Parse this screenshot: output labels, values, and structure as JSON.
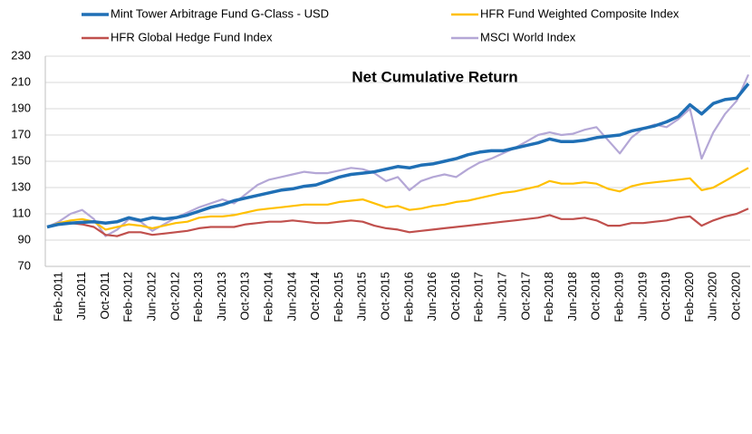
{
  "chart_data": {
    "type": "line",
    "title": "Net Cumulative Return",
    "categories": [
      null,
      "Feb-2011",
      null,
      "Jun-2011",
      null,
      "Oct-2011",
      null,
      "Feb-2012",
      null,
      "Jun-2012",
      null,
      "Oct-2012",
      null,
      "Feb-2013",
      null,
      "Jun-2013",
      null,
      "Oct-2013",
      null,
      "Feb-2014",
      null,
      "Jun-2014",
      null,
      "Oct-2014",
      null,
      "Feb-2015",
      null,
      "Jun-2015",
      null,
      "Oct-2015",
      null,
      "Feb-2016",
      null,
      "Jun-2016",
      null,
      "Oct-2016",
      null,
      "Feb-2017",
      null,
      "Jun-2017",
      null,
      "Oct-2017",
      null,
      "Feb-2018",
      null,
      "Jun-2018",
      null,
      "Oct-2018",
      null,
      "Feb-2019",
      null,
      "Jun-2019",
      null,
      "Oct-2019",
      null,
      "Feb-2020",
      null,
      "Jun-2020",
      null,
      "Oct-2020",
      null
    ],
    "series": [
      {
        "name": "Mint Tower Arbitrage Fund G-Class - USD",
        "color": "#1f6fb5",
        "values": [
          100,
          102,
          103,
          103.5,
          104,
          103,
          104,
          107,
          105,
          107,
          106,
          107,
          109,
          112,
          115,
          117,
          120,
          122,
          124,
          126,
          128,
          129,
          131,
          132,
          135,
          138,
          140,
          141,
          142,
          144,
          146,
          145,
          147,
          148,
          150,
          152,
          155,
          157,
          158,
          158,
          160,
          162,
          164,
          167,
          165,
          165,
          166,
          168,
          169,
          170,
          173,
          175,
          177,
          180,
          184,
          193,
          186,
          194,
          197,
          198,
          209
        ]
      },
      {
        "name": "HFR Fund Weighted Composite Index",
        "color": "#ffc000",
        "values": [
          100,
          103,
          105,
          106,
          104,
          98,
          100,
          102,
          101,
          99,
          101,
          103,
          104,
          107,
          108,
          108,
          109,
          111,
          113,
          114,
          115,
          116,
          117,
          117,
          117,
          119,
          120,
          121,
          118,
          115,
          116,
          113,
          114,
          116,
          117,
          119,
          120,
          122,
          124,
          126,
          127,
          129,
          131,
          135,
          133,
          133,
          134,
          133,
          129,
          127,
          131,
          133,
          134,
          135,
          136,
          137,
          128,
          130,
          135,
          140,
          145
        ]
      },
      {
        "name": "HFR Global Hedge Fund Index",
        "color": "#c0504d",
        "values": [
          100,
          102,
          103,
          102,
          100,
          94,
          93,
          96,
          96,
          94,
          95,
          96,
          97,
          99,
          100,
          100,
          100,
          102,
          103,
          104,
          104,
          105,
          104,
          103,
          103,
          104,
          105,
          104,
          101,
          99,
          98,
          96,
          97,
          98,
          99,
          100,
          101,
          102,
          103,
          104,
          105,
          106,
          107,
          109,
          106,
          106,
          107,
          105,
          101,
          101,
          103,
          103,
          104,
          105,
          107,
          108,
          101,
          105,
          108,
          110,
          114
        ]
      },
      {
        "name": "MSCI World Index",
        "color": "#b4a7d6",
        "values": [
          100,
          104,
          110,
          113,
          106,
          93,
          98,
          106,
          104,
          97,
          102,
          107,
          111,
          115,
          118,
          121,
          118,
          125,
          132,
          136,
          138,
          140,
          142,
          141,
          141,
          143,
          145,
          144,
          141,
          135,
          138,
          128,
          135,
          138,
          140,
          138,
          144,
          149,
          152,
          156,
          160,
          165,
          170,
          172,
          170,
          171,
          174,
          176,
          166,
          156,
          168,
          175,
          178,
          176,
          182,
          190,
          152,
          172,
          186,
          196,
          216
        ]
      }
    ],
    "ylim": [
      70,
      230
    ],
    "yticks": [
      70,
      90,
      110,
      130,
      150,
      170,
      190,
      210,
      230
    ],
    "grid": true,
    "legend": "top"
  }
}
